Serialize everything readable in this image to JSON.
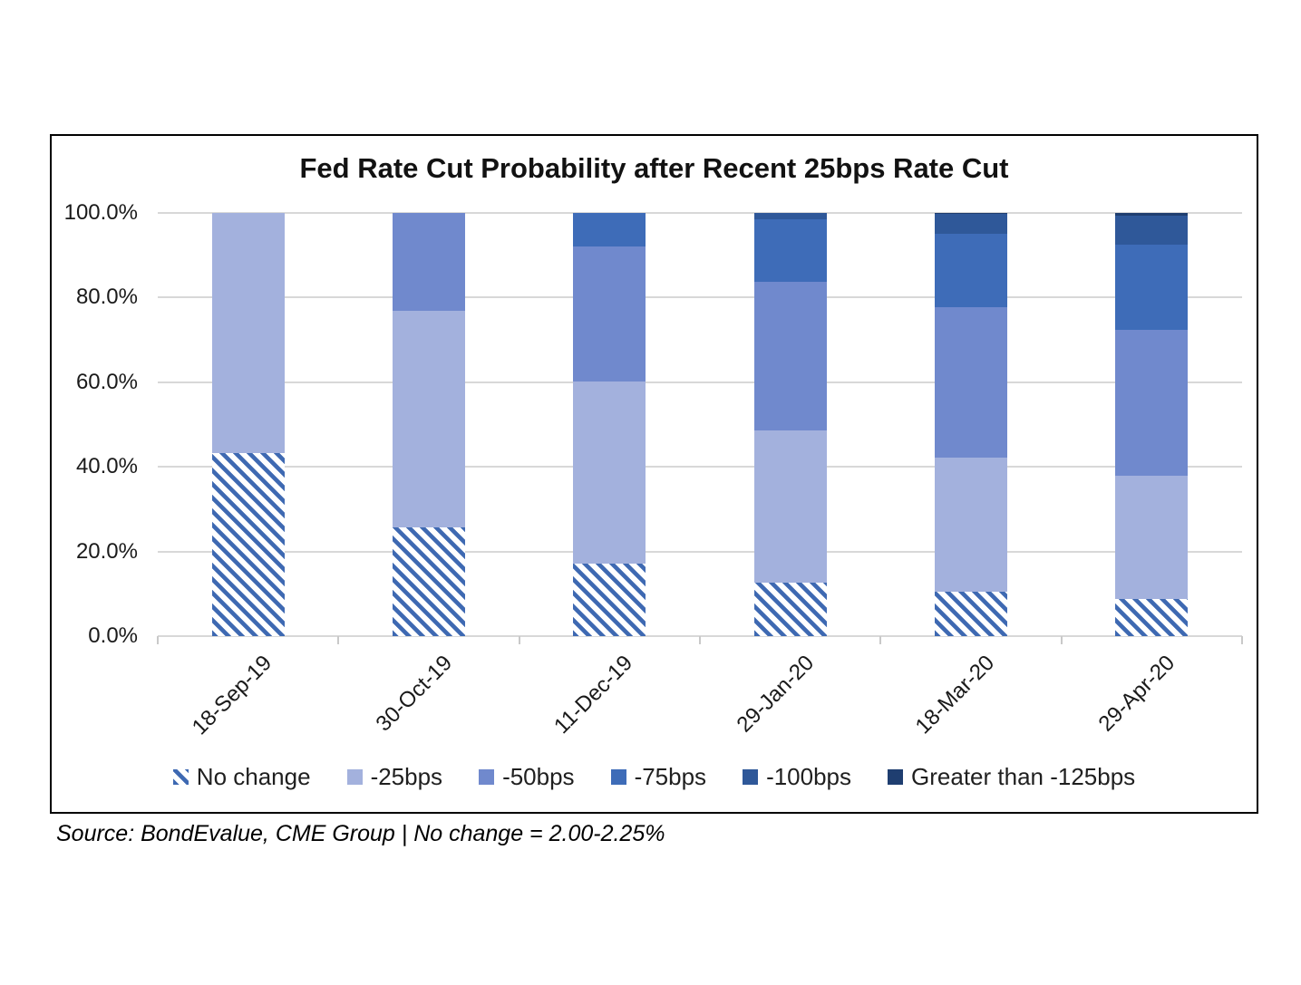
{
  "chart": {
    "title": "Fed Rate Cut Probability after Recent 25bps Rate Cut",
    "source_note": "Source: BondEvalue, CME Group | No change = 2.00-2.25%"
  },
  "chart_data": {
    "type": "bar",
    "stacked": true,
    "units": "percent",
    "title": "Fed Rate Cut Probability after Recent 25bps Rate Cut",
    "xlabel": "",
    "ylabel": "",
    "ylim": [
      0,
      100
    ],
    "ytick_values": [
      0,
      20,
      40,
      60,
      80,
      100
    ],
    "ytick_labels": [
      "0.0%",
      "20.0%",
      "40.0%",
      "60.0%",
      "80.0%",
      "100.0%"
    ],
    "grid": true,
    "legend_position": "bottom",
    "categories": [
      "18-Sep-19",
      "30-Oct-19",
      "11-Dec-19",
      "29-Jan-20",
      "18-Mar-20",
      "29-Apr-20"
    ],
    "series": [
      {
        "name": "No change",
        "color": "#3e69b2",
        "pattern": "diagonal-stripes",
        "values": [
          43.3,
          25.8,
          17.2,
          12.6,
          10.4,
          8.8
        ]
      },
      {
        "name": "-25bps",
        "color": "#a3b1dd",
        "pattern": "solid",
        "values": [
          56.7,
          51.0,
          43.0,
          36.1,
          31.8,
          29.1
        ]
      },
      {
        "name": "-50bps",
        "color": "#7089cd",
        "pattern": "solid",
        "values": [
          0,
          23.2,
          31.9,
          35.0,
          35.5,
          34.5
        ]
      },
      {
        "name": "-75bps",
        "color": "#3e6cb8",
        "pattern": "solid",
        "values": [
          0,
          0,
          7.9,
          14.7,
          17.3,
          20.2
        ]
      },
      {
        "name": "-100bps",
        "color": "#2f5899",
        "pattern": "solid",
        "values": [
          0,
          0,
          0,
          1.6,
          4.7,
          6.8
        ]
      },
      {
        "name": "Greater than -125bps",
        "color": "#1f3e70",
        "pattern": "solid",
        "values": [
          0,
          0,
          0,
          0,
          0.3,
          0.6
        ]
      }
    ],
    "source_note": "Source: BondEvalue, CME Group | No change = 2.00-2.25%"
  }
}
